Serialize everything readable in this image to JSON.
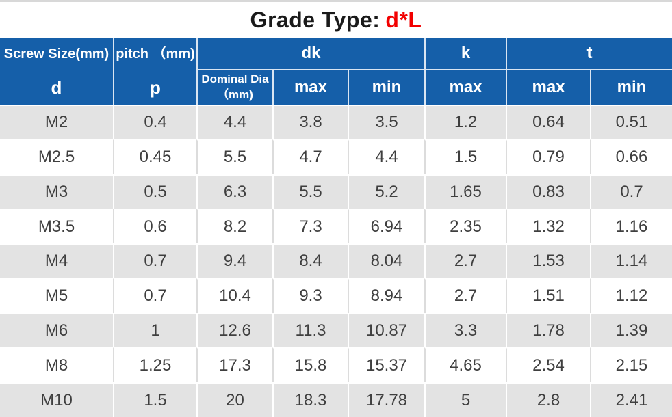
{
  "title": {
    "prefix": "Grade Type:",
    "highlight": "d*L"
  },
  "colors": {
    "header_bg": "#155fa9",
    "header_text": "#ffffff",
    "header_divider": "#d9e5f2",
    "row_alt_bg": "#e3e3e3",
    "row_bg": "#ffffff",
    "row_divider_light": "#dcdcdc",
    "data_text": "#3f3f3f",
    "title_red": "#f20000",
    "top_strip": "#d8d8d8"
  },
  "chart_data": {
    "type": "table",
    "title": "Grade Type: d*L",
    "header": {
      "col_screw": {
        "label": "Screw Size(mm)",
        "symbol": "d"
      },
      "col_pitch": {
        "label": "pitch （mm)",
        "symbol": "p"
      },
      "group_dk": "dk",
      "group_k": "k",
      "group_t": "t",
      "sub_nominal_dia": {
        "line1": "Dominal Dia",
        "line2": "（mm)"
      },
      "sub_dk_max": "max",
      "sub_dk_min": "min",
      "sub_k_max": "max",
      "sub_t_max": "max",
      "sub_t_min": "min"
    },
    "columns_flat": [
      "d",
      "p",
      "Dominal Dia (mm)",
      "dk max",
      "dk min",
      "k max",
      "t max",
      "t min"
    ],
    "rows": [
      [
        "M2",
        "0.4",
        "4.4",
        "3.8",
        "3.5",
        "1.2",
        "0.64",
        "0.51"
      ],
      [
        "M2.5",
        "0.45",
        "5.5",
        "4.7",
        "4.4",
        "1.5",
        "0.79",
        "0.66"
      ],
      [
        "M3",
        "0.5",
        "6.3",
        "5.5",
        "5.2",
        "1.65",
        "0.83",
        "0.7"
      ],
      [
        "M3.5",
        "0.6",
        "8.2",
        "7.3",
        "6.94",
        "2.35",
        "1.32",
        "1.16"
      ],
      [
        "M4",
        "0.7",
        "9.4",
        "8.4",
        "8.04",
        "2.7",
        "1.53",
        "1.14"
      ],
      [
        "M5",
        "0.7",
        "10.4",
        "9.3",
        "8.94",
        "2.7",
        "1.51",
        "1.12"
      ],
      [
        "M6",
        "1",
        "12.6",
        "11.3",
        "10.87",
        "3.3",
        "1.78",
        "1.39"
      ],
      [
        "M8",
        "1.25",
        "17.3",
        "15.8",
        "15.37",
        "4.65",
        "2.54",
        "2.15"
      ],
      [
        "M10",
        "1.5",
        "20",
        "18.3",
        "17.78",
        "5",
        "2.8",
        "2.41"
      ]
    ]
  }
}
